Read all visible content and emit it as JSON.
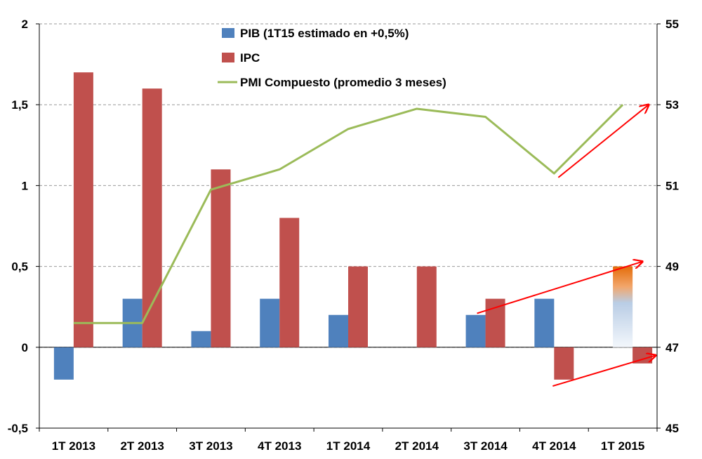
{
  "chart_data": {
    "type": "bar",
    "title": "",
    "categories": [
      "1T 2013",
      "2T 2013",
      "3T 2013",
      "4T 2013",
      "1T 2014",
      "2T 2014",
      "3T 2014",
      "4T 2014",
      "1T 2015"
    ],
    "series": [
      {
        "name": "PIB (1T15 estimado en +0,5%)",
        "type": "bar",
        "axis": "left",
        "color": "#4F81BD",
        "values": [
          -0.2,
          0.3,
          0.1,
          0.3,
          0.2,
          0.0,
          0.2,
          0.3,
          0.5
        ],
        "estimated_last": true
      },
      {
        "name": "IPC",
        "type": "bar",
        "axis": "left",
        "color": "#C0504D",
        "values": [
          1.7,
          1.6,
          1.1,
          0.8,
          0.5,
          0.5,
          0.3,
          -0.2,
          -0.1
        ]
      },
      {
        "name": "PMI Compuesto (promedio 3 meses)",
        "type": "line",
        "axis": "right",
        "color": "#9BBB59",
        "values": [
          47.6,
          47.6,
          50.9,
          51.4,
          52.4,
          52.9,
          52.7,
          51.3,
          53.0
        ]
      }
    ],
    "left_axis": {
      "min": -0.5,
      "max": 2,
      "ticks": [
        -0.5,
        0,
        0.5,
        1,
        1.5,
        2
      ],
      "tick_labels": [
        "-0,5",
        "0",
        "0,5",
        "1",
        "1,5",
        "2"
      ]
    },
    "right_axis": {
      "min": 45,
      "max": 55,
      "ticks": [
        45,
        47,
        49,
        51,
        53,
        55
      ],
      "tick_labels": [
        "45",
        "47",
        "49",
        "51",
        "53",
        "55"
      ]
    },
    "legend_position": "top-center",
    "grid": "horizontal dashed",
    "annotations": [
      {
        "type": "arrow",
        "color": "#FF0000",
        "from": {
          "category": "4T 2014",
          "right_value": 51.2
        },
        "to": {
          "category": "1T 2015",
          "right_value": 53.0
        }
      },
      {
        "type": "arrow",
        "color": "#FF0000",
        "from": {
          "category": "3T 2014",
          "left_value": 0.2
        },
        "to": {
          "category": "1T 2015",
          "left_value": 0.5
        }
      },
      {
        "type": "arrow",
        "color": "#FF0000",
        "from": {
          "category": "4T 2014",
          "left_value": -0.25
        },
        "to": {
          "category": "1T 2015",
          "left_value": -0.05
        }
      }
    ]
  }
}
